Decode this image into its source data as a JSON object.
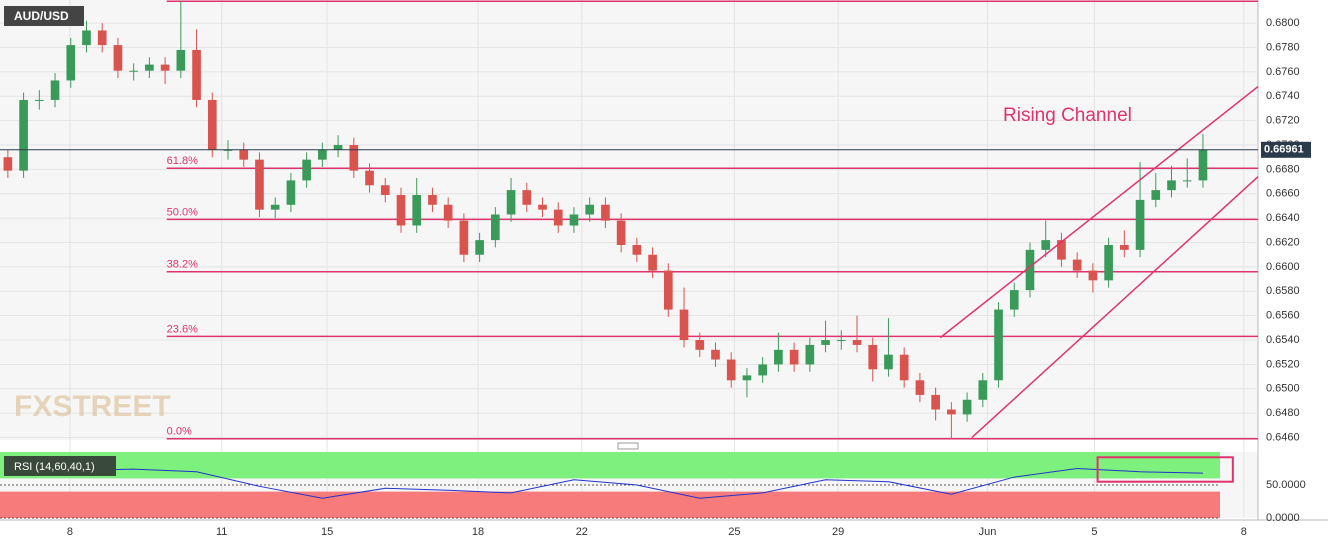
{
  "chart_data": [
    {
      "type": "candlestick",
      "title": "AUD/USD",
      "annotation": "Rising Channel",
      "watermark": "FXSTREET",
      "up_color": "#3a9a5a",
      "down_color": "#d9534f",
      "level_color": "#e0336e",
      "xlim": [
        -0.5,
        79.5
      ],
      "ylim": [
        0.6458,
        0.6819
      ],
      "xticks": [
        {
          "value": 3.95,
          "label": "8"
        },
        {
          "value": 13.6,
          "label": "11"
        },
        {
          "value": 20.3,
          "label": "15"
        },
        {
          "value": 29.9,
          "label": "18"
        },
        {
          "value": 36.5,
          "label": "22"
        },
        {
          "value": 46.2,
          "label": "25"
        },
        {
          "value": 52.8,
          "label": "29"
        },
        {
          "value": 62.3,
          "label": "Jun"
        },
        {
          "value": 69.1,
          "label": "5"
        },
        {
          "value": 78.6,
          "label": "8"
        }
      ],
      "yticks": [
        {
          "value": 0.646,
          "label": "0.6460"
        },
        {
          "value": 0.648,
          "label": "0.6480"
        },
        {
          "value": 0.65,
          "label": "0.6500"
        },
        {
          "value": 0.652,
          "label": "0.6520"
        },
        {
          "value": 0.654,
          "label": "0.6540"
        },
        {
          "value": 0.656,
          "label": "0.6560"
        },
        {
          "value": 0.658,
          "label": "0.6580"
        },
        {
          "value": 0.66,
          "label": "0.6600"
        },
        {
          "value": 0.662,
          "label": "0.6620"
        },
        {
          "value": 0.664,
          "label": "0.6640"
        },
        {
          "value": 0.666,
          "label": "0.6660"
        },
        {
          "value": 0.668,
          "label": "0.6680"
        },
        {
          "value": 0.67,
          "label": "0.6700"
        },
        {
          "value": 0.672,
          "label": "0.6720"
        },
        {
          "value": 0.674,
          "label": "0.6740"
        },
        {
          "value": 0.676,
          "label": "0.6760"
        },
        {
          "value": 0.678,
          "label": "0.6780"
        },
        {
          "value": 0.68,
          "label": "0.6800"
        }
      ],
      "grid": true,
      "current_price": {
        "value": 0.66961,
        "label": "0.66961"
      },
      "level_start": 10.1,
      "levels": [
        {
          "value": 0.6818
        },
        {
          "value": 0.6681,
          "label": "61.8%"
        },
        {
          "value": 0.6639,
          "label": "50.0%"
        },
        {
          "value": 0.6596,
          "label": "38.2%"
        },
        {
          "value": 0.6543,
          "label": "23.6%"
        },
        {
          "value": 0.6459,
          "label": "0.0%"
        }
      ],
      "channel": [
        {
          "x": [
            59.3,
            79.5
          ],
          "y": [
            0.6542,
            0.6748
          ]
        },
        {
          "x": [
            61.3,
            79.5
          ],
          "y": [
            0.646,
            0.6674
          ]
        }
      ],
      "open": [
        0.669,
        0.6679,
        0.6737,
        0.6737,
        0.6753,
        0.6782,
        0.6794,
        0.6782,
        0.6761,
        0.6761,
        0.6766,
        0.6761,
        0.6778,
        0.6737,
        0.6696,
        0.6696,
        0.6688,
        0.6647,
        0.6651,
        0.6671,
        0.6688,
        0.6696,
        0.67,
        0.6679,
        0.6667,
        0.6659,
        0.6634,
        0.6659,
        0.6651,
        0.6638,
        0.661,
        0.6622,
        0.6643,
        0.6663,
        0.6651,
        0.6647,
        0.6634,
        0.6643,
        0.6651,
        0.6638,
        0.6618,
        0.661,
        0.6597,
        0.6565,
        0.654,
        0.6532,
        0.6524,
        0.6507,
        0.6511,
        0.652,
        0.6532,
        0.652,
        0.6536,
        0.654,
        0.654,
        0.6536,
        0.6516,
        0.6528,
        0.6507,
        0.6495,
        0.6483,
        0.6479,
        0.6491,
        0.6507,
        0.6565,
        0.6581,
        0.6614,
        0.6622,
        0.6606,
        0.6597,
        0.6589,
        0.6618,
        0.6614,
        0.6655,
        0.6663,
        0.6671,
        0.6671
      ],
      "high": [
        0.6696,
        0.6743,
        0.6745,
        0.6759,
        0.6788,
        0.6802,
        0.68,
        0.6788,
        0.6767,
        0.6772,
        0.6772,
        0.6818,
        0.6795,
        0.6743,
        0.6704,
        0.6702,
        0.6694,
        0.6657,
        0.6677,
        0.6694,
        0.6702,
        0.6708,
        0.6706,
        0.6685,
        0.6673,
        0.6665,
        0.6673,
        0.6665,
        0.6657,
        0.6644,
        0.6628,
        0.6649,
        0.6673,
        0.6669,
        0.6657,
        0.6653,
        0.6649,
        0.6657,
        0.6657,
        0.6644,
        0.6624,
        0.6616,
        0.6603,
        0.6583,
        0.6546,
        0.6538,
        0.653,
        0.6517,
        0.6526,
        0.6546,
        0.6538,
        0.6542,
        0.6556,
        0.6548,
        0.656,
        0.6542,
        0.6558,
        0.6534,
        0.6513,
        0.6501,
        0.6489,
        0.6497,
        0.6513,
        0.6571,
        0.6587,
        0.662,
        0.6638,
        0.6628,
        0.6612,
        0.6603,
        0.6624,
        0.663,
        0.6686,
        0.6677,
        0.6683,
        0.6689,
        0.6709
      ],
      "low": [
        0.6673,
        0.6673,
        0.6729,
        0.6731,
        0.6747,
        0.6776,
        0.6776,
        0.6755,
        0.6753,
        0.6755,
        0.675,
        0.6755,
        0.6731,
        0.669,
        0.6688,
        0.6682,
        0.6641,
        0.664,
        0.6645,
        0.6665,
        0.6682,
        0.669,
        0.6673,
        0.6661,
        0.6653,
        0.6628,
        0.6628,
        0.6645,
        0.6632,
        0.6604,
        0.6604,
        0.6616,
        0.6637,
        0.6645,
        0.6641,
        0.6628,
        0.6628,
        0.6637,
        0.6632,
        0.6612,
        0.6604,
        0.6591,
        0.6559,
        0.6534,
        0.6526,
        0.6518,
        0.6501,
        0.6493,
        0.6505,
        0.6514,
        0.6514,
        0.6514,
        0.653,
        0.6532,
        0.653,
        0.6506,
        0.651,
        0.6501,
        0.6489,
        0.6474,
        0.6459,
        0.6473,
        0.6485,
        0.6501,
        0.6559,
        0.6575,
        0.6608,
        0.66,
        0.6591,
        0.6579,
        0.6583,
        0.6608,
        0.6608,
        0.6649,
        0.6657,
        0.6665,
        0.6665
      ],
      "close": [
        0.6679,
        0.6737,
        0.6737,
        0.6753,
        0.6782,
        0.6794,
        0.6782,
        0.6761,
        0.6761,
        0.6766,
        0.6761,
        0.6778,
        0.6737,
        0.6696,
        0.6696,
        0.6688,
        0.6647,
        0.6651,
        0.6671,
        0.6688,
        0.6696,
        0.67,
        0.6679,
        0.6667,
        0.6659,
        0.6634,
        0.6659,
        0.6651,
        0.6638,
        0.661,
        0.6622,
        0.6643,
        0.6663,
        0.6651,
        0.6647,
        0.6634,
        0.6643,
        0.6651,
        0.6638,
        0.6618,
        0.661,
        0.6597,
        0.6565,
        0.654,
        0.6532,
        0.6524,
        0.6507,
        0.6511,
        0.652,
        0.6532,
        0.652,
        0.6536,
        0.654,
        0.654,
        0.6536,
        0.6516,
        0.6528,
        0.6507,
        0.6495,
        0.6483,
        0.6479,
        0.6491,
        0.6507,
        0.6565,
        0.6581,
        0.6614,
        0.6622,
        0.6606,
        0.6597,
        0.6589,
        0.6618,
        0.6614,
        0.6655,
        0.6663,
        0.6671,
        0.6671,
        0.6696
      ]
    },
    {
      "type": "line",
      "title": "RSI (14,60,40,1)",
      "color": "#2233cc",
      "xlim": [
        -0.5,
        79.5
      ],
      "ylim": [
        0,
        100
      ],
      "yticks": [
        {
          "value": 50,
          "label": "50.0000"
        },
        {
          "value": 0,
          "label": "0.0000"
        }
      ],
      "zones": [
        {
          "from": 60,
          "to": 100,
          "color": "#7ef07e"
        },
        {
          "from": 0,
          "to": 40,
          "color": "#f77b7b"
        }
      ],
      "highlight": {
        "x": [
          69.3,
          77.9
        ],
        "y": [
          92,
          55
        ],
        "color": "#e0336e"
      },
      "x": [
        0,
        4,
        8,
        12,
        16,
        20,
        24,
        28,
        32,
        36,
        40,
        44,
        48,
        52,
        56,
        60,
        64,
        68,
        72,
        76
      ],
      "values": [
        70,
        72,
        74,
        70,
        48,
        30,
        45,
        42,
        38,
        58,
        50,
        30,
        38,
        58,
        55,
        36,
        62,
        75,
        70,
        68
      ]
    }
  ]
}
